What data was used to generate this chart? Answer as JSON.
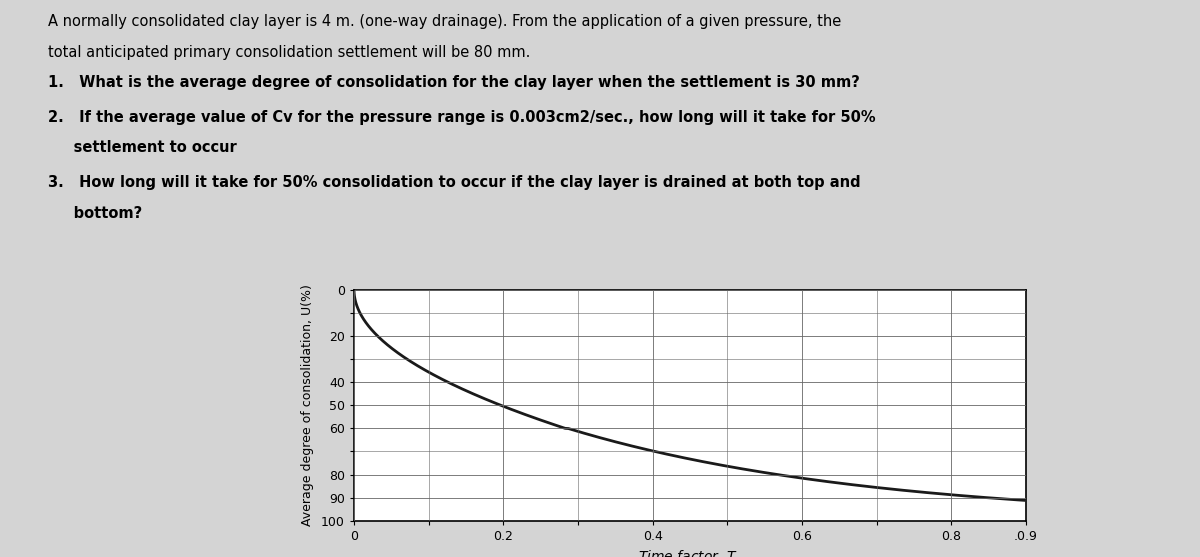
{
  "text_line1": "A normally consolidated clay layer is 4 m. (one-way drainage). From the application of a given pressure, the",
  "text_line2": "total anticipated primary consolidation settlement will be 80 mm.",
  "text_item1": "1.   What is the average degree of consolidation for the clay layer when the settlement is 30 mm?",
  "text_item2a": "2.   If the average value of Cv for the pressure range is 0.003cm2/sec., how long will it take for 50%",
  "text_item2b": "     settlement to occur",
  "text_item3a": "3.   How long will it take for 50% consolidation to occur if the clay layer is drained at both top and",
  "text_item3b": "     bottom?",
  "xlabel": "Time factor, $T_v$",
  "ylabel": "Average degree of consolidation, U(%)",
  "yticks": [
    0,
    20,
    40,
    50,
    60,
    80,
    90,
    100
  ],
  "xticks": [
    0,
    0.2,
    0.4,
    0.6,
    0.8,
    0.9
  ],
  "xtick_labels": [
    "0",
    "0.2",
    "0.4",
    "0.6",
    "0.8",
    ".0.9"
  ],
  "xlim": [
    0,
    0.9
  ],
  "ylim": [
    0,
    100
  ],
  "curve_color": "#1a1a1a",
  "grid_color": "#666666",
  "plot_bg": "#ffffff",
  "fig_bg": "#d4d4d4",
  "text_fontsize": 10.5,
  "item_fontsize": 10.5
}
